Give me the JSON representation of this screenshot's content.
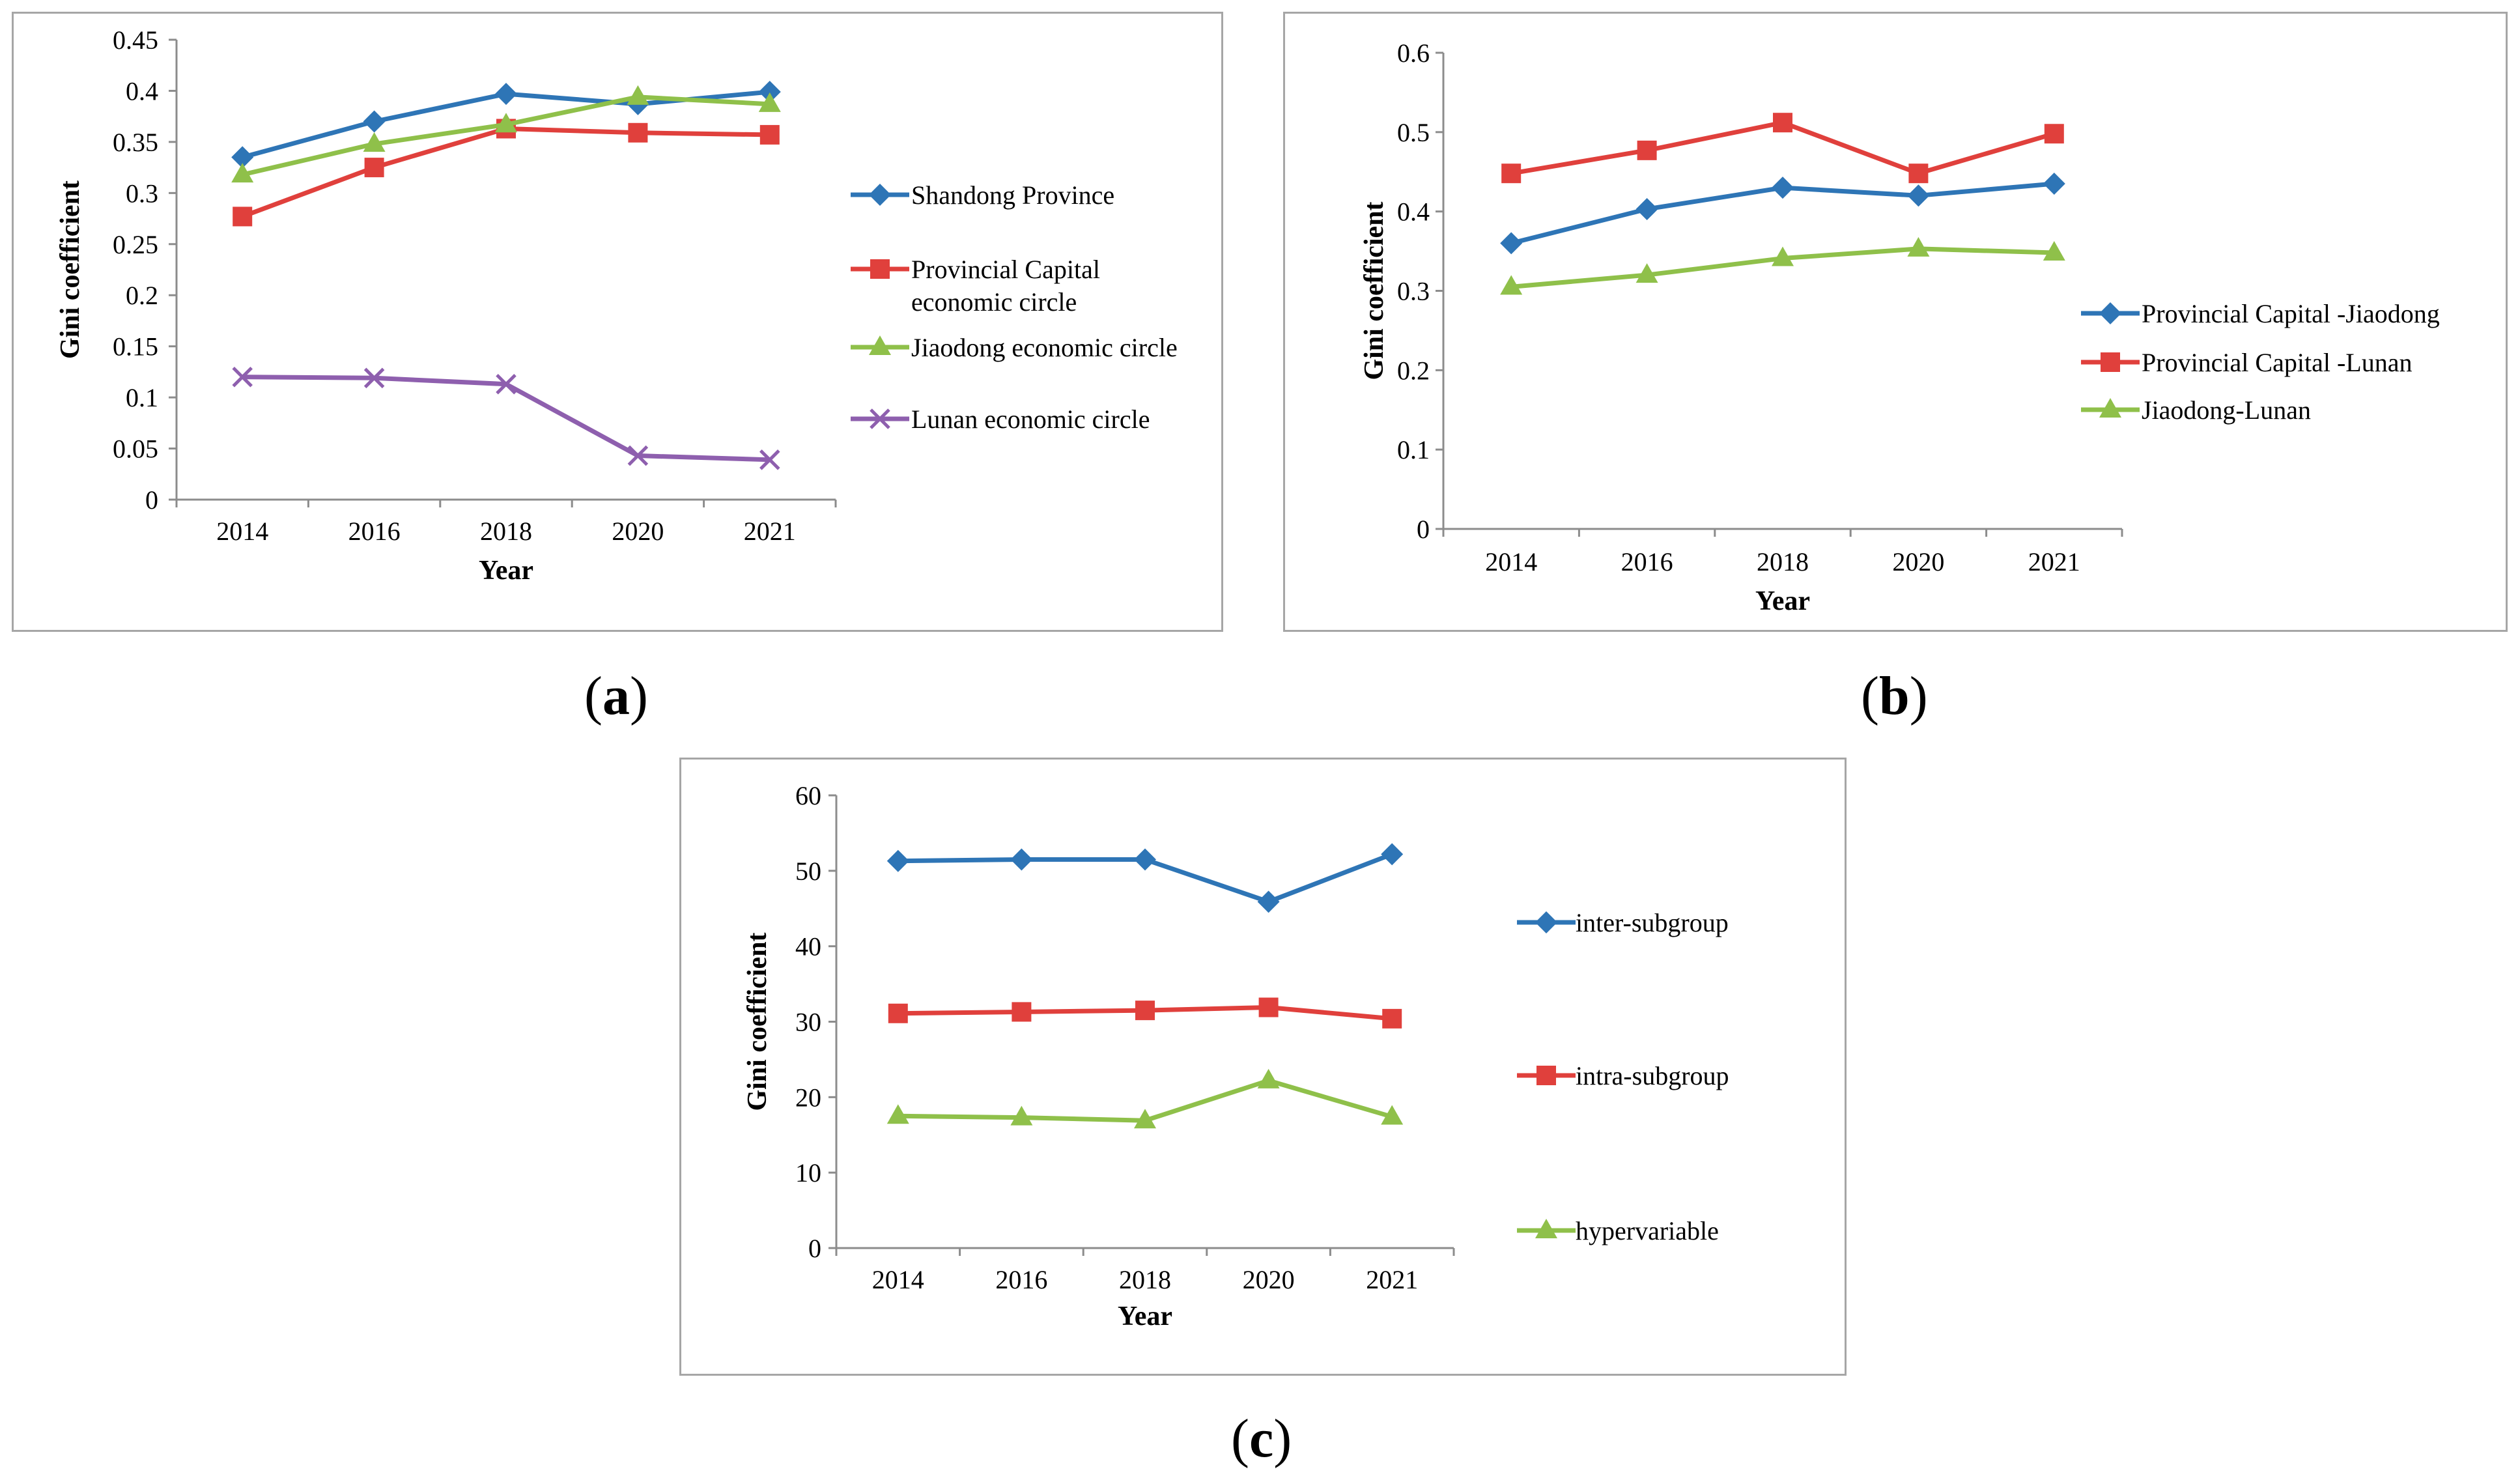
{
  "chart_data": [
    {
      "type": "line",
      "panel": "a",
      "xlabel": "Year",
      "ylabel": "Gini coefficient",
      "categories": [
        "2014",
        "2016",
        "2018",
        "2020",
        "2021"
      ],
      "ylim": [
        0,
        0.45
      ],
      "yticks": [
        "0",
        "0.05",
        "0.1",
        "0.15",
        "0.2",
        "0.25",
        "0.3",
        "0.35",
        "0.4",
        "0.45"
      ],
      "legend_position": "right",
      "series": [
        {
          "name": "Shandong Province",
          "color": "#2e75b6",
          "marker": "diamond",
          "values": [
            0.335,
            0.37,
            0.397,
            0.387,
            0.399
          ]
        },
        {
          "name": "Provincial Capital economic circle",
          "legend_lines": [
            "Provincial Capital",
            "economic circle"
          ],
          "color": "#e0403c",
          "marker": "square",
          "values": [
            0.277,
            0.325,
            0.363,
            0.359,
            0.357
          ]
        },
        {
          "name": "Jiaodong economic circle",
          "color": "#8fc04a",
          "marker": "triangle",
          "values": [
            0.318,
            0.348,
            0.367,
            0.394,
            0.387
          ]
        },
        {
          "name": "Lunan economic circle",
          "color": "#8e5fae",
          "marker": "x",
          "values": [
            0.12,
            0.119,
            0.113,
            0.043,
            0.039
          ]
        }
      ]
    },
    {
      "type": "line",
      "panel": "b",
      "xlabel": "Year",
      "ylabel": "Gini coefficient",
      "categories": [
        "2014",
        "2016",
        "2018",
        "2020",
        "2021"
      ],
      "ylim": [
        0,
        0.6
      ],
      "yticks": [
        "0",
        "0.1",
        "0.2",
        "0.3",
        "0.4",
        "0.5",
        "0.6"
      ],
      "legend_position": "right",
      "series": [
        {
          "name": "Provincial Capital -Jiaodong",
          "color": "#2e75b6",
          "marker": "diamond",
          "values": [
            0.36,
            0.403,
            0.43,
            0.42,
            0.435
          ]
        },
        {
          "name": "Provincial Capital -Lunan",
          "color": "#e0403c",
          "marker": "square",
          "values": [
            0.448,
            0.477,
            0.512,
            0.448,
            0.498
          ]
        },
        {
          "name": "Jiaodong-Lunan",
          "color": "#8fc04a",
          "marker": "triangle",
          "values": [
            0.305,
            0.32,
            0.341,
            0.353,
            0.348
          ]
        }
      ]
    },
    {
      "type": "line",
      "panel": "c",
      "xlabel": "Year",
      "ylabel": "Gini coefficient",
      "categories": [
        "2014",
        "2016",
        "2018",
        "2020",
        "2021"
      ],
      "ylim": [
        0,
        60
      ],
      "yticks": [
        "0",
        "10",
        "20",
        "30",
        "40",
        "50",
        "60"
      ],
      "legend_position": "right",
      "series": [
        {
          "name": "inter-subgroup",
          "color": "#2e75b6",
          "marker": "diamond",
          "values": [
            51.3,
            51.5,
            51.5,
            45.9,
            52.2
          ]
        },
        {
          "name": "intra-subgroup",
          "color": "#e0403c",
          "marker": "square",
          "values": [
            31.1,
            31.3,
            31.5,
            31.9,
            30.4
          ]
        },
        {
          "name": "hypervariable",
          "color": "#8fc04a",
          "marker": "triangle",
          "values": [
            17.5,
            17.3,
            16.9,
            22.2,
            17.4
          ]
        }
      ]
    }
  ],
  "captions": {
    "open": "(",
    "close": ")",
    "a": "a",
    "b": "b",
    "c": "c"
  }
}
